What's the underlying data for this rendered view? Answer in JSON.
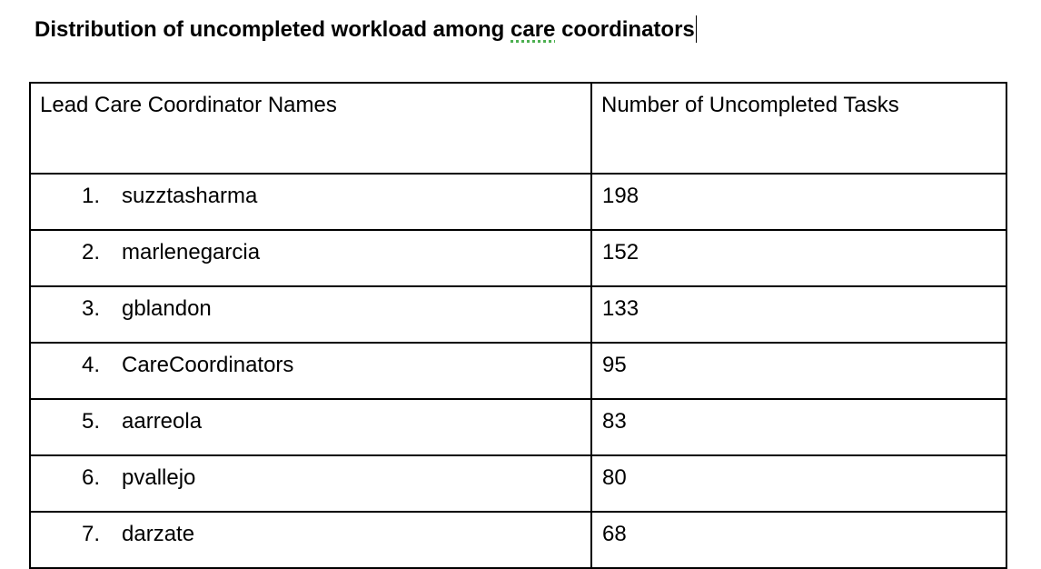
{
  "document": {
    "title_before": "Distribution of uncompleted workload among ",
    "title_flagged_word": "care",
    "title_after": " coordinators"
  },
  "table": {
    "headers": [
      "Lead Care Coordinator Names",
      "Number of Uncompleted Tasks"
    ],
    "rows": [
      {
        "number": "1.",
        "name": "suzztasharma",
        "tasks": "198"
      },
      {
        "number": "2.",
        "name": "marlenegarcia",
        "tasks": "152"
      },
      {
        "number": "3.",
        "name": "gblandon",
        "tasks": "133"
      },
      {
        "number": "4.",
        "name": "CareCoordinators",
        "tasks": "95"
      },
      {
        "number": "5.",
        "name": "aarreola",
        "tasks": "83"
      },
      {
        "number": "6.",
        "name": "pvallejo",
        "tasks": "80"
      },
      {
        "number": "7.",
        "name": "darzate",
        "tasks": "68"
      }
    ]
  },
  "colors": {
    "text": "#000000",
    "border": "#000000",
    "spellcheck_underline": "#4caf50"
  }
}
